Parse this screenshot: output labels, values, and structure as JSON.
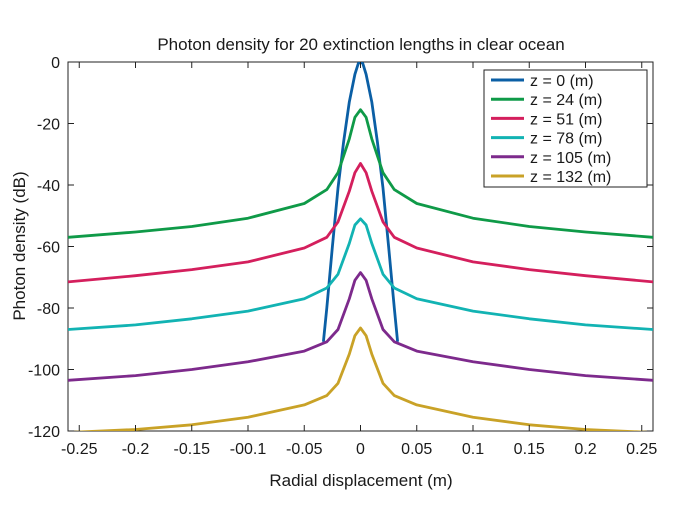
{
  "chart_data": {
    "type": "line",
    "title": "Photon density for 20 extinction lengths in clear ocean",
    "xlabel": "Radial displacement (m)",
    "ylabel": "Photon density (dB)",
    "xlim": [
      -0.26,
      0.26
    ],
    "ylim": [
      -120,
      0
    ],
    "x_ticks": [
      -0.25,
      -0.2,
      -0.15,
      -0.1,
      -0.05,
      0,
      0.05,
      0.1,
      0.15,
      0.2,
      0.25
    ],
    "x_tick_labels": [
      "-0.25",
      "-0.2",
      "-0.15",
      "-00.1",
      "-0.05",
      "0",
      "0.05",
      "0.1",
      "0.15",
      "0.2",
      "0.25"
    ],
    "y_ticks": [
      0,
      -20,
      -40,
      -60,
      -80,
      -100,
      -120
    ],
    "y_tick_labels": [
      "0",
      "-20",
      "-40",
      "-60",
      "-80",
      "-100",
      "-120"
    ],
    "grid": false,
    "legend_position": "top-right",
    "series": [
      {
        "name": "z = 0 (m)",
        "color": "#0b5fa5",
        "x": [
          -0.033,
          -0.03,
          -0.025,
          -0.02,
          -0.015,
          -0.01,
          -0.005,
          -0.002,
          0,
          0.002,
          0.005,
          0.01,
          0.015,
          0.02,
          0.025,
          0.03,
          0.033
        ],
        "y": [
          -91,
          -80,
          -60,
          -41,
          -26,
          -13,
          -4,
          -0.5,
          0,
          -0.5,
          -4,
          -13,
          -26,
          -41,
          -60,
          -80,
          -91
        ]
      },
      {
        "name": "z = 24 (m)",
        "color": "#0f9a48",
        "x": [
          -0.26,
          -0.2,
          -0.15,
          -0.1,
          -0.05,
          -0.03,
          -0.02,
          -0.01,
          -0.005,
          0,
          0.005,
          0.01,
          0.02,
          0.03,
          0.05,
          0.1,
          0.15,
          0.2,
          0.26
        ],
        "y": [
          -57,
          -55.3,
          -53.5,
          -50.8,
          -46,
          -41.5,
          -36,
          -25,
          -18,
          -15.5,
          -18,
          -25,
          -36,
          -41.5,
          -46,
          -50.8,
          -53.5,
          -55.3,
          -57
        ]
      },
      {
        "name": "z = 51 (m)",
        "color": "#d41f5d",
        "x": [
          -0.26,
          -0.2,
          -0.15,
          -0.1,
          -0.05,
          -0.03,
          -0.02,
          -0.01,
          -0.005,
          0,
          0.005,
          0.01,
          0.02,
          0.03,
          0.05,
          0.1,
          0.15,
          0.2,
          0.26
        ],
        "y": [
          -71.5,
          -69.5,
          -67.5,
          -65,
          -60.5,
          -57,
          -52,
          -42,
          -36,
          -33,
          -36,
          -42,
          -52,
          -57,
          -60.5,
          -65,
          -67.5,
          -69.5,
          -71.5
        ]
      },
      {
        "name": "z = 78 (m)",
        "color": "#12b3b3",
        "x": [
          -0.26,
          -0.2,
          -0.15,
          -0.1,
          -0.05,
          -0.03,
          -0.02,
          -0.01,
          -0.005,
          0,
          0.005,
          0.01,
          0.02,
          0.03,
          0.05,
          0.1,
          0.15,
          0.2,
          0.26
        ],
        "y": [
          -87,
          -85.5,
          -83.5,
          -81,
          -77,
          -73.5,
          -69,
          -59,
          -53,
          -51,
          -53,
          -59,
          -69,
          -73.5,
          -77,
          -81,
          -83.5,
          -85.5,
          -87
        ]
      },
      {
        "name": "z = 105 (m)",
        "color": "#7d2a8c",
        "x": [
          -0.26,
          -0.2,
          -0.15,
          -0.1,
          -0.05,
          -0.03,
          -0.02,
          -0.01,
          -0.005,
          0,
          0.005,
          0.01,
          0.02,
          0.03,
          0.05,
          0.1,
          0.15,
          0.2,
          0.26
        ],
        "y": [
          -103.5,
          -102,
          -100,
          -97.5,
          -94,
          -91,
          -87,
          -77,
          -71,
          -68.5,
          -71,
          -77,
          -87,
          -91,
          -94,
          -97.5,
          -100,
          -102,
          -103.5
        ]
      },
      {
        "name": "z = 132 (m)",
        "color": "#c9a227",
        "x": [
          -0.26,
          -0.2,
          -0.15,
          -0.1,
          -0.05,
          -0.03,
          -0.02,
          -0.01,
          -0.005,
          0,
          0.005,
          0.01,
          0.02,
          0.03,
          0.05,
          0.1,
          0.15,
          0.2,
          0.26
        ],
        "y": [
          -120.5,
          -119.5,
          -118,
          -115.5,
          -111.5,
          -108.5,
          -104.5,
          -95,
          -89,
          -86.5,
          -89,
          -95,
          -104.5,
          -108.5,
          -111.5,
          -115.5,
          -118,
          -119.5,
          -120.5
        ]
      }
    ]
  }
}
